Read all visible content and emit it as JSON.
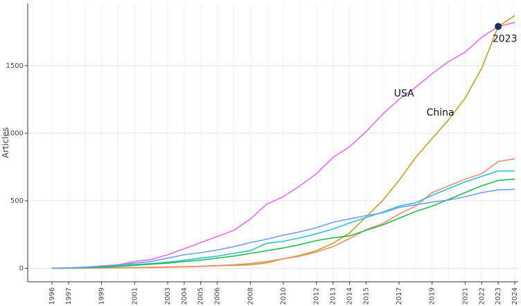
{
  "chart_data": {
    "type": "line",
    "ylabel": "Articles",
    "xlabel": "",
    "x_ticks": [
      1996,
      1997,
      1999,
      2001,
      2003,
      2004,
      2005,
      2006,
      2008,
      2010,
      2012,
      2013,
      2014,
      2015,
      2017,
      2019,
      2021,
      2022,
      2023,
      2024
    ],
    "y_ticks": [
      0,
      500,
      1000,
      1500
    ],
    "xlim": [
      1996,
      2024
    ],
    "ylim": [
      -100,
      1960
    ],
    "grid": true,
    "x": [
      1996,
      1997,
      1998,
      1999,
      2000,
      2001,
      2002,
      2003,
      2004,
      2005,
      2006,
      2007,
      2008,
      2009,
      2010,
      2011,
      2012,
      2013,
      2014,
      2015,
      2016,
      2017,
      2018,
      2019,
      2020,
      2021,
      2022,
      2023,
      2024
    ],
    "series": [
      {
        "name": "USA",
        "color": "#e76bf3",
        "values": [
          0,
          2,
          8,
          18,
          25,
          50,
          65,
          100,
          145,
          190,
          235,
          280,
          365,
          475,
          530,
          610,
          700,
          820,
          900,
          1010,
          1140,
          1250,
          1340,
          1440,
          1530,
          1600,
          1710,
          1790,
          1820
        ]
      },
      {
        "name": "China",
        "color": "#c9a012",
        "values": [
          0,
          0,
          1,
          2,
          3,
          4,
          6,
          8,
          10,
          14,
          18,
          22,
          25,
          40,
          70,
          95,
          130,
          185,
          260,
          380,
          500,
          650,
          820,
          960,
          1100,
          1260,
          1480,
          1790,
          1870
        ]
      },
      {
        "name": "",
        "color": "#f08c73",
        "values": [
          0,
          1,
          2,
          3,
          4,
          6,
          8,
          10,
          12,
          15,
          20,
          26,
          35,
          50,
          70,
          90,
          120,
          160,
          220,
          285,
          330,
          400,
          460,
          560,
          610,
          660,
          700,
          790,
          810
        ]
      },
      {
        "name": "",
        "color": "#25c3d3",
        "values": [
          0,
          2,
          5,
          10,
          18,
          28,
          35,
          45,
          60,
          75,
          90,
          110,
          130,
          185,
          200,
          225,
          255,
          290,
          335,
          375,
          415,
          460,
          485,
          540,
          590,
          640,
          680,
          720,
          720
        ]
      },
      {
        "name": "",
        "color": "#1fbd4c",
        "values": [
          0,
          1,
          4,
          8,
          14,
          22,
          30,
          38,
          50,
          60,
          75,
          90,
          110,
          130,
          150,
          175,
          205,
          225,
          240,
          280,
          320,
          370,
          420,
          460,
          510,
          560,
          610,
          650,
          660
        ]
      },
      {
        "name": "",
        "color": "#6f9ef5",
        "values": [
          0,
          3,
          8,
          15,
          25,
          38,
          50,
          75,
          100,
          115,
          135,
          160,
          190,
          215,
          245,
          270,
          300,
          340,
          365,
          390,
          410,
          450,
          470,
          490,
          505,
          530,
          560,
          580,
          585
        ]
      }
    ],
    "annotations": [
      {
        "text": "USA",
        "x": 2017.3,
        "y": 1270
      },
      {
        "text": "China",
        "x": 2019.5,
        "y": 1130
      },
      {
        "text": "2023",
        "x": 2023.4,
        "y": 1675
      }
    ],
    "highlight_point": {
      "x": 2023,
      "y": 1790,
      "color": "#1b2f6b"
    }
  }
}
